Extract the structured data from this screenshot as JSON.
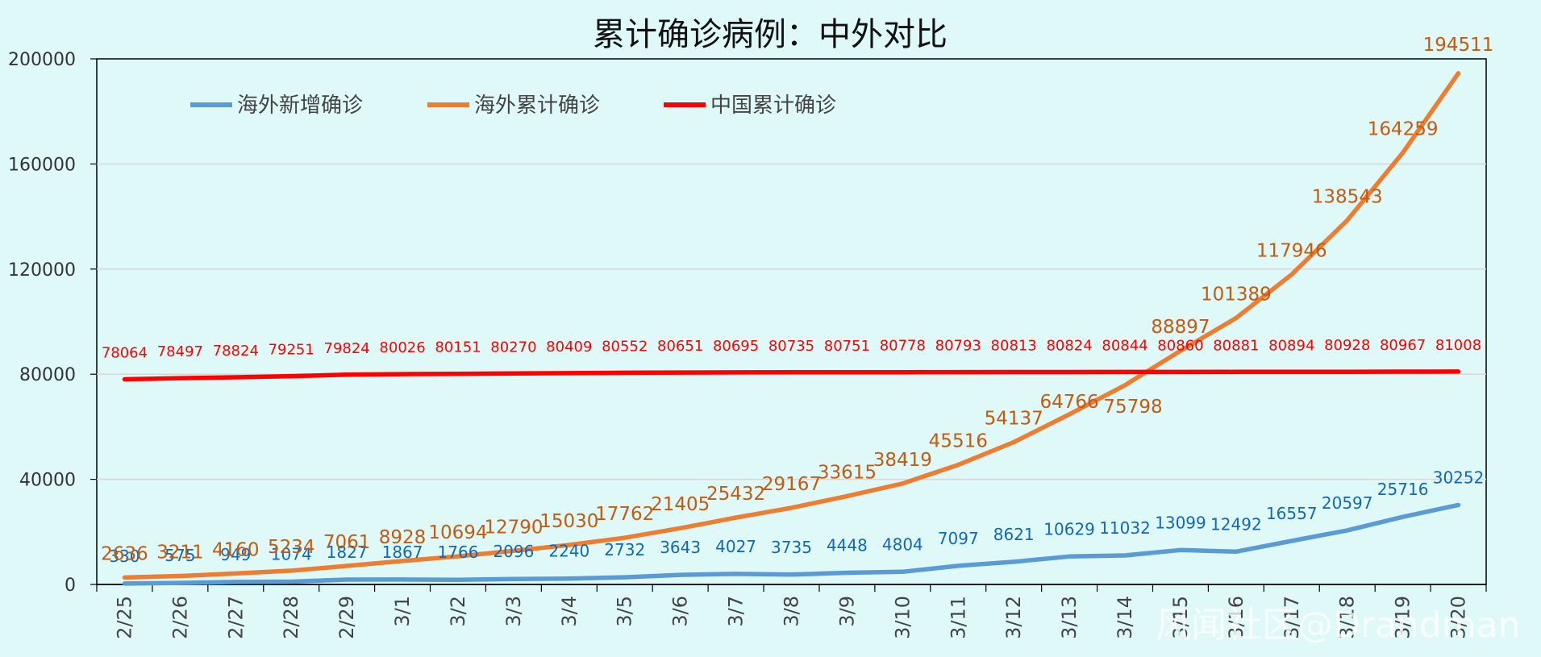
{
  "chart_data": {
    "type": "line",
    "title": "累计确诊病例：中外对比",
    "categories": [
      "2/25",
      "2/26",
      "2/27",
      "2/28",
      "2/29",
      "3/1",
      "3/2",
      "3/3",
      "3/4",
      "3/5",
      "3/6",
      "3/7",
      "3/8",
      "3/9",
      "3/10",
      "3/11",
      "3/12",
      "3/13",
      "3/14",
      "3/15",
      "3/16",
      "3/17",
      "3/18",
      "3/19",
      "3/20"
    ],
    "ylim": [
      0,
      200000
    ],
    "yticks": [
      0,
      40000,
      80000,
      120000,
      160000,
      200000
    ],
    "grid": true,
    "legend": "top-left",
    "series": [
      {
        "name": "海外新增确诊",
        "color": "#5b9bd5",
        "label_color": "#1168b8",
        "values": [
          330,
          575,
          949,
          1074,
          1827,
          1867,
          1766,
          2096,
          2240,
          2732,
          3643,
          4027,
          3735,
          4448,
          4804,
          7097,
          8621,
          10629,
          11032,
          13099,
          12492,
          16557,
          20597,
          25716,
          30252
        ]
      },
      {
        "name": "海外累计确诊",
        "color": "#ed7d31",
        "label_color": "#c55a11",
        "values": [
          2636,
          3211,
          4160,
          5234,
          7061,
          8928,
          10694,
          12790,
          15030,
          17762,
          21405,
          25432,
          29167,
          33615,
          38419,
          45516,
          54137,
          64766,
          75798,
          88897,
          101389,
          117946,
          138543,
          164259,
          194511
        ]
      },
      {
        "name": "中国累计确诊",
        "color": "#ff0000",
        "label_color": "#ff0000",
        "values": [
          78064,
          78497,
          78824,
          79251,
          79824,
          80026,
          80151,
          80270,
          80409,
          80552,
          80651,
          80695,
          80735,
          80751,
          80778,
          80793,
          80813,
          80824,
          80844,
          80860,
          80881,
          80894,
          80928,
          80967,
          81008
        ]
      }
    ],
    "watermark": "风闻社区@Drandman"
  }
}
